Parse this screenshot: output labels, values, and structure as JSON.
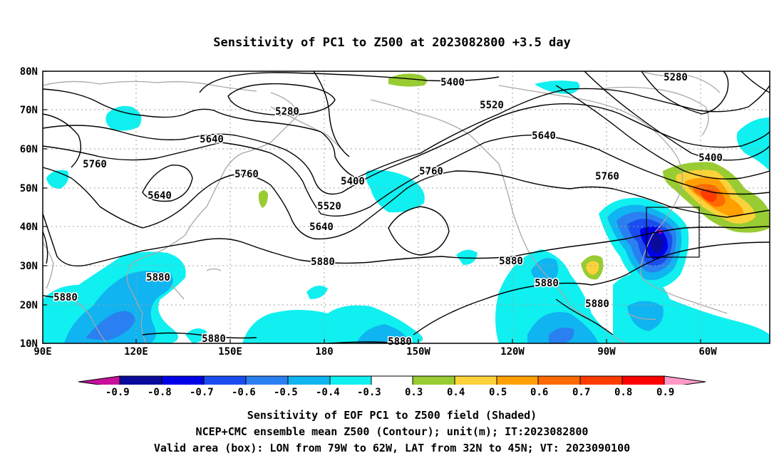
{
  "title": "Sensitivity of PC1 to Z500 at 2023082800 +3.5 day",
  "lat_labels": [
    "80N",
    "70N",
    "60N",
    "50N",
    "40N",
    "30N",
    "20N",
    "10N"
  ],
  "lon_labels": [
    "90E",
    "120E",
    "150E",
    "180",
    "150W",
    "120W",
    "90W",
    "60W"
  ],
  "contour_labels": {
    "c5400a": "5400",
    "c5280a": "5280",
    "c5520a": "5520",
    "c5280b": "5280",
    "c5640a": "5640",
    "c5640b": "5640",
    "c5760a": "5760",
    "c5400b": "5400",
    "c5760b": "5760",
    "c5760c": "5760",
    "c5400c": "5400",
    "c5640c": "5640",
    "c5760d": "5760",
    "c5520b": "5520",
    "c5640d": "5640",
    "c5880a": "5880",
    "c5880b": "5880",
    "c5880c": "5880",
    "c5880d": "5880",
    "c5880e": "5880",
    "c5880f": "5880",
    "c5880g": "5880",
    "c5880h": "5880"
  },
  "colorbar": {
    "labels": [
      "-0.9",
      "-0.8",
      "-0.7",
      "-0.6",
      "-0.5",
      "-0.4",
      "-0.3",
      "0.3",
      "0.4",
      "0.5",
      "0.6",
      "0.7",
      "0.8",
      "0.9"
    ],
    "colors": [
      "#0a0a9c",
      "#0000e6",
      "#1a4cf0",
      "#2a80f0",
      "#10b4f0",
      "#10f0f0",
      "#ffffff",
      "#98cc32",
      "#fcd23a",
      "#ffa000",
      "#ff6a00",
      "#ff3c00",
      "#ff0000"
    ],
    "low_arrow_color": "#c8109c",
    "high_arrow_color": "#ff9ac8"
  },
  "footer": {
    "line1": "Sensitivity of EOF PC1 to Z500 field (Shaded)",
    "line2": "NCEP+CMC ensemble mean Z500 (Contour); unit(m); IT:2023082800",
    "line3": "Valid area (box): LON from 79W to 62W, LAT from 32N to 45N; VT: 2023090100"
  }
}
